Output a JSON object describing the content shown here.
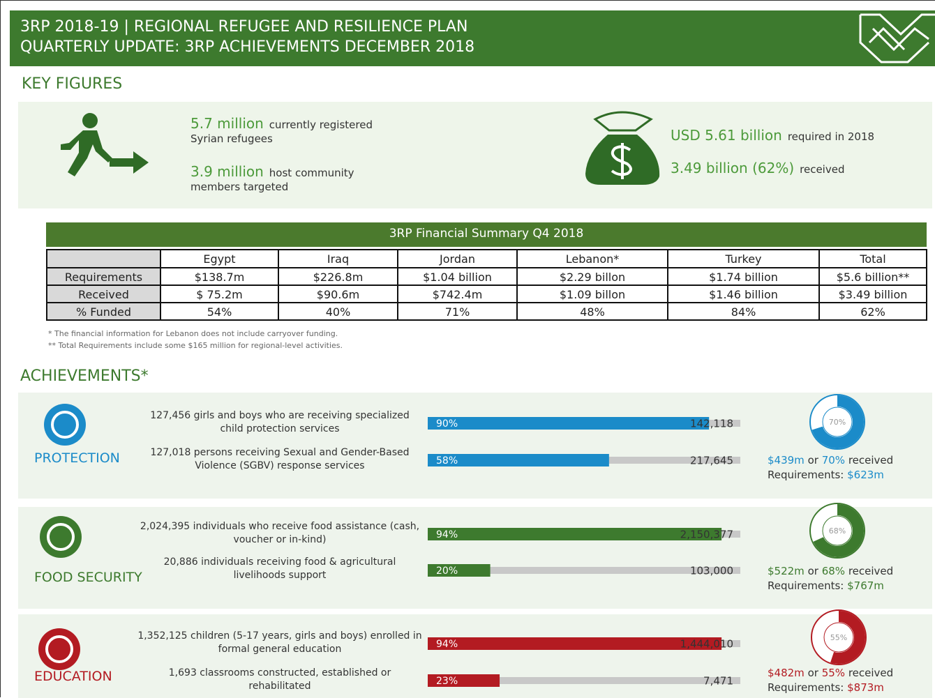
{
  "header": {
    "title_lines": [
      "3RP 2018-19 | REGIONAL REFUGEE AND RESILIENCE PLAN",
      "QUARTERLY UPDATE: 3RP ACHIEVEMENTS  DECEMBER 2018"
    ]
  },
  "key_figures": {
    "title": "KEY FIGURES",
    "items": [
      {
        "figure": "5.7 million",
        "text": [
          "currently registered",
          "Syrian refugees"
        ]
      },
      {
        "figure": "3.9 million",
        "text": [
          "host community",
          "members targeted"
        ]
      },
      {
        "figure": "USD 5.61 billion",
        "text": [
          "required in 2018"
        ]
      },
      {
        "figure": "3.49 billion (62%)",
        "text": [
          "received"
        ]
      }
    ]
  },
  "table": {
    "title": "3RP Financial Summary Q4 2018",
    "columns": [
      "Egypt",
      "Iraq",
      "Jordan",
      "Lebanon*",
      "Turkey",
      "Total"
    ],
    "rows": [
      {
        "label": "Requirements",
        "cells": [
          "$138.7m",
          "$226.8m",
          "$1.04 billion",
          "$2.29 billon",
          "$1.74 billion",
          "$5.6 billion**"
        ]
      },
      {
        "label": "Received",
        "cells": [
          "$ 75.2m",
          "$90.6m",
          "$742.4m",
          "$1.09 billon",
          "$1.46 billion",
          "$3.49 billion"
        ]
      },
      {
        "label": "% Funded",
        "cells": [
          "54%",
          "40%",
          "71%",
          "48%",
          "84%",
          "62%"
        ]
      }
    ]
  },
  "footnotes": [
    "*  The financial information for Lebanon does not include carryover funding.",
    "** Total Requirements include some $165 million for regional-level activities."
  ],
  "achievements": {
    "title": "ACHIEVEMENTS*",
    "sections": [
      {
        "name": "PROTECTION",
        "color": "#1b8bc9",
        "indicators": [
          {
            "text": [
              "127,456 girls and boys who are receiving specialized",
              "child protection services"
            ],
            "value": 90,
            "value_label": "90%",
            "target": "142,118"
          },
          {
            "text": [
              "127,018 persons receiving Sexual and Gender-Based",
              "Violence (SGBV) response services"
            ],
            "value": 58,
            "value_label": "58%",
            "target": "217,645"
          }
        ],
        "funding": {
          "received": "$439m",
          "connector": "or",
          "percent": 70,
          "percent_label": "70%",
          "suffix": "received",
          "req_label": "Requirements:",
          "requirements": "$623m"
        }
      },
      {
        "name": "FOOD SECURITY",
        "color": "#3d7a2e",
        "indicators": [
          {
            "text": [
              "2,024,395 individuals who receive food assistance (cash,",
              "voucher or in-kind)"
            ],
            "value": 94,
            "value_label": "94%",
            "target": "2,150,377"
          },
          {
            "text": [
              "20,886 individuals receiving food & agricultural",
              "livelihoods support"
            ],
            "value": 20,
            "value_label": "20%",
            "target": "103,000"
          }
        ],
        "funding": {
          "received": "$522m",
          "connector": "or",
          "percent": 68,
          "percent_label": "68%",
          "suffix": "received",
          "req_label": "Requirements:",
          "requirements": "$767m"
        }
      },
      {
        "name": "EDUCATION",
        "color": "#b31b22",
        "indicators": [
          {
            "text": [
              "1,352,125 children (5-17 years, girls and boys) enrolled in",
              "formal general education"
            ],
            "value": 94,
            "value_label": "94%",
            "target": "1,444,010"
          },
          {
            "text": [
              "1,693 classrooms constructed, established or",
              "rehabilitated"
            ],
            "value": 23,
            "value_label": "23%",
            "target": "7,471"
          }
        ],
        "funding": {
          "received": "$482m",
          "connector": "or",
          "percent": 55,
          "percent_label": "55%",
          "suffix": "received",
          "req_label": "Requirements:",
          "requirements": "$873m"
        }
      }
    ]
  }
}
